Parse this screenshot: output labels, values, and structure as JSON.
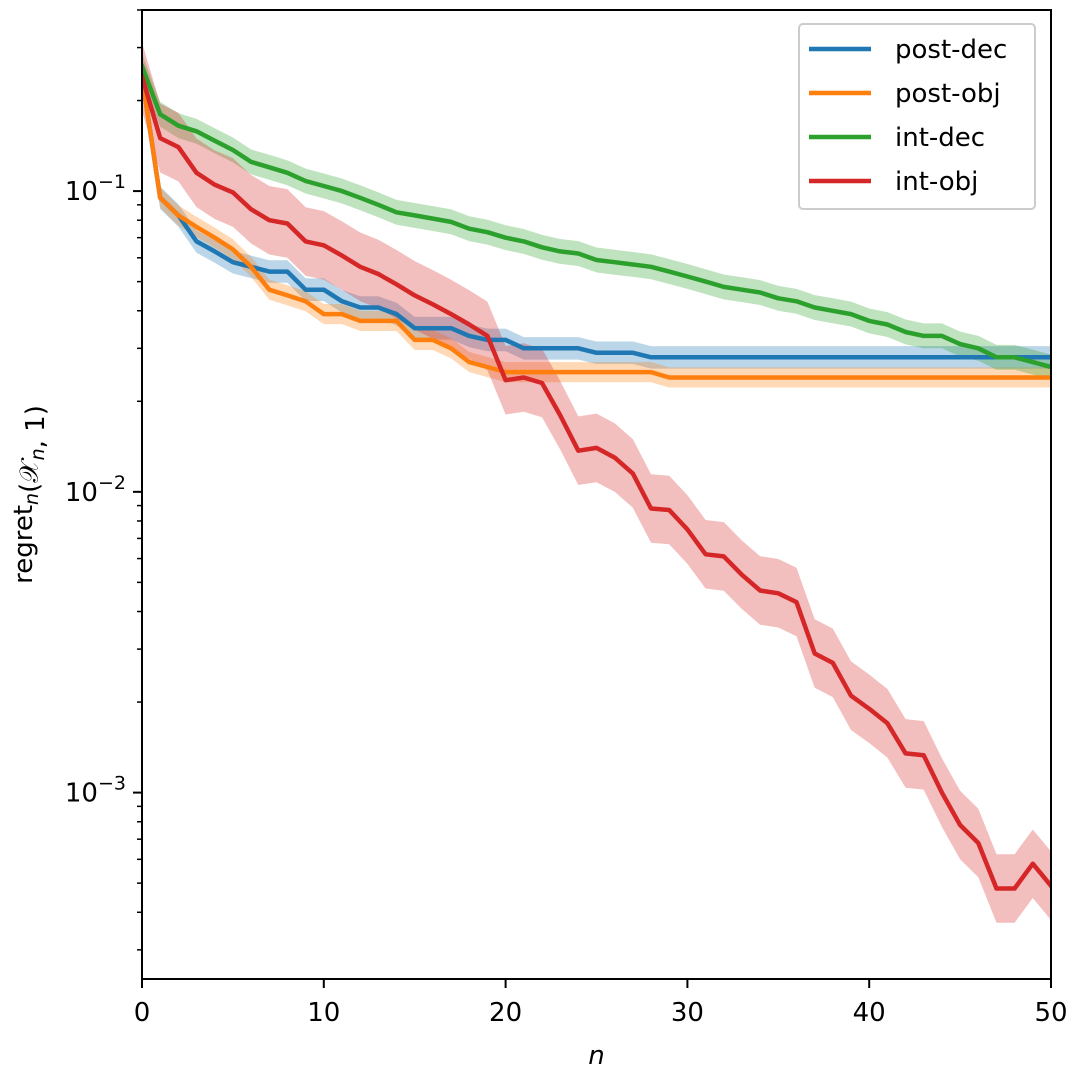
{
  "chart_data": {
    "type": "line",
    "title": "",
    "xlabel": "n",
    "ylabel": "regret_n(𝒳_n, 1)",
    "xscale": "linear",
    "yscale": "log",
    "xlim": [
      0,
      50
    ],
    "ylim": [
      0.00024,
      0.4
    ],
    "grid": false,
    "legend_position": "top-right",
    "x_ticks": [
      0,
      10,
      20,
      30,
      40,
      50
    ],
    "x_tick_labels": [
      "0",
      "10",
      "20",
      "30",
      "40",
      "50"
    ],
    "y_ticks": [
      0.1,
      0.01,
      0.001
    ],
    "y_tick_labels": [
      {
        "base": "10",
        "exp": "−1"
      },
      {
        "base": "10",
        "exp": "−2"
      },
      {
        "base": "10",
        "exp": "−3"
      }
    ],
    "x": [
      0,
      1,
      2,
      3,
      4,
      5,
      6,
      7,
      8,
      9,
      10,
      11,
      12,
      13,
      14,
      15,
      16,
      17,
      18,
      19,
      20,
      21,
      22,
      23,
      24,
      25,
      26,
      27,
      28,
      29,
      30,
      31,
      32,
      33,
      34,
      35,
      36,
      37,
      38,
      39,
      40,
      41,
      42,
      43,
      44,
      45,
      46,
      47,
      48,
      49,
      50
    ],
    "series": [
      {
        "name": "post-dec",
        "color": "#1f77b4",
        "values": [
          0.24,
          0.095,
          0.083,
          0.068,
          0.063,
          0.058,
          0.056,
          0.054,
          0.054,
          0.047,
          0.047,
          0.043,
          0.041,
          0.041,
          0.039,
          0.035,
          0.035,
          0.035,
          0.033,
          0.032,
          0.032,
          0.03,
          0.03,
          0.03,
          0.03,
          0.029,
          0.029,
          0.029,
          0.028,
          0.028,
          0.028,
          0.028,
          0.028,
          0.028,
          0.028,
          0.028,
          0.028,
          0.028,
          0.028,
          0.028,
          0.028,
          0.028,
          0.028,
          0.028,
          0.028,
          0.028,
          0.028,
          0.028,
          0.028,
          0.028,
          0.028
        ],
        "band_factor": 1.09
      },
      {
        "name": "post-obj",
        "color": "#ff7f0e",
        "values": [
          0.24,
          0.095,
          0.083,
          0.076,
          0.07,
          0.064,
          0.056,
          0.047,
          0.045,
          0.043,
          0.039,
          0.039,
          0.037,
          0.037,
          0.037,
          0.032,
          0.032,
          0.03,
          0.027,
          0.026,
          0.025,
          0.025,
          0.025,
          0.025,
          0.025,
          0.025,
          0.025,
          0.025,
          0.025,
          0.024,
          0.024,
          0.024,
          0.024,
          0.024,
          0.024,
          0.024,
          0.024,
          0.024,
          0.024,
          0.024,
          0.024,
          0.024,
          0.024,
          0.024,
          0.024,
          0.024,
          0.024,
          0.024,
          0.024,
          0.024,
          0.024
        ],
        "band_factor": 1.08
      },
      {
        "name": "int-dec",
        "color": "#2ca02c",
        "values": [
          0.26,
          0.18,
          0.165,
          0.158,
          0.147,
          0.137,
          0.125,
          0.12,
          0.115,
          0.108,
          0.104,
          0.1,
          0.095,
          0.09,
          0.085,
          0.083,
          0.081,
          0.079,
          0.075,
          0.073,
          0.07,
          0.068,
          0.065,
          0.063,
          0.062,
          0.059,
          0.058,
          0.057,
          0.056,
          0.054,
          0.052,
          0.05,
          0.048,
          0.047,
          0.046,
          0.044,
          0.043,
          0.041,
          0.04,
          0.039,
          0.037,
          0.036,
          0.034,
          0.033,
          0.033,
          0.031,
          0.03,
          0.028,
          0.028,
          0.027,
          0.026
        ],
        "band_factor": 1.1
      },
      {
        "name": "int-obj",
        "color": "#d62728",
        "values": [
          0.24,
          0.15,
          0.14,
          0.115,
          0.105,
          0.099,
          0.087,
          0.08,
          0.078,
          0.068,
          0.066,
          0.061,
          0.056,
          0.053,
          0.049,
          0.045,
          0.042,
          0.039,
          0.036,
          0.033,
          0.0235,
          0.024,
          0.023,
          0.018,
          0.0137,
          0.014,
          0.013,
          0.0115,
          0.0088,
          0.0087,
          0.0075,
          0.0062,
          0.0061,
          0.0053,
          0.0047,
          0.0046,
          0.0043,
          0.0029,
          0.0027,
          0.0021,
          0.0019,
          0.0017,
          0.00135,
          0.00133,
          0.001,
          0.00078,
          0.00068,
          0.00048,
          0.00048,
          0.00058,
          0.00049
        ],
        "band_factor": 1.3
      }
    ]
  }
}
